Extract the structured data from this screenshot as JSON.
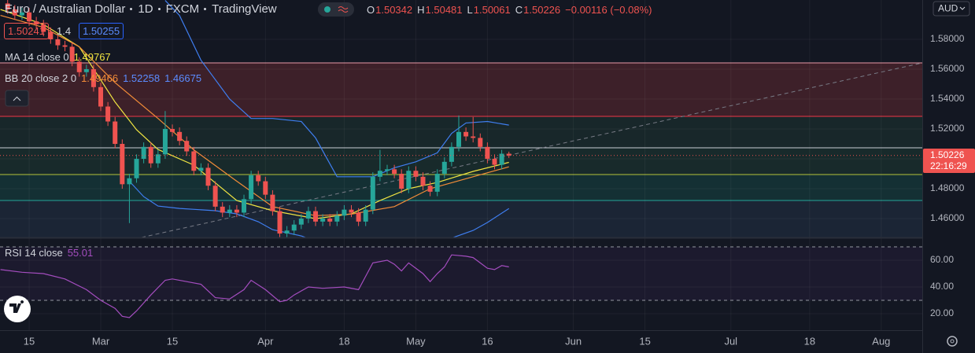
{
  "header": {
    "symbol": "Euro / Australian Dollar",
    "interval": "1D",
    "exchange": "FXCM",
    "source": "TradingView",
    "ohlc": [
      {
        "key": "O",
        "value": "1.50342"
      },
      {
        "key": "H",
        "value": "1.50481"
      },
      {
        "key": "L",
        "value": "1.50061"
      },
      {
        "key": "C",
        "value": "1.50226"
      }
    ],
    "change": "−0.00116 (−0.08%)",
    "bid": "1.50241",
    "spread": "1.4",
    "ask": "1.50255",
    "currency": "AUD",
    "price_tag": "1.50226",
    "countdown": "22:16:29"
  },
  "chart_data": [
    {
      "type": "candlestick",
      "up_color": "#26a69a",
      "down_color": "#ef5350",
      "x": [
        -3,
        -2,
        -1,
        0,
        1,
        2,
        3,
        4,
        5,
        6,
        7,
        8,
        9,
        10,
        11,
        12,
        13,
        14,
        15,
        16,
        17,
        18,
        19,
        20,
        21,
        22,
        23,
        24,
        25,
        26,
        27,
        28,
        29,
        30,
        31,
        32,
        33,
        34,
        35,
        36,
        37,
        38,
        39,
        40,
        41,
        42,
        43,
        44,
        45,
        46,
        47,
        48,
        49,
        50,
        51,
        52,
        53,
        54,
        55,
        56,
        57,
        58,
        59,
        60,
        61,
        62,
        63,
        64,
        65,
        66,
        67
      ],
      "open": [
        1.604,
        1.6,
        1.596,
        1.598,
        1.592,
        1.59,
        1.585,
        1.58,
        1.576,
        1.575,
        1.565,
        1.558,
        1.56,
        1.548,
        1.535,
        1.525,
        1.51,
        1.483,
        1.487,
        1.5,
        1.508,
        1.497,
        1.503,
        1.52,
        1.518,
        1.512,
        1.505,
        1.492,
        1.494,
        1.482,
        1.468,
        1.464,
        1.466,
        1.464,
        1.473,
        1.489,
        1.485,
        1.476,
        1.465,
        1.45,
        1.452,
        1.456,
        1.46,
        1.465,
        1.458,
        1.46,
        1.458,
        1.462,
        1.466,
        1.464,
        1.458,
        1.466,
        1.488,
        1.492,
        1.493,
        1.49,
        1.48,
        1.492,
        1.488,
        1.482,
        1.478,
        1.49,
        1.498,
        1.508,
        1.518,
        1.515,
        1.514,
        1.508,
        1.5,
        1.496,
        1.50342
      ],
      "high": [
        1.607,
        1.603,
        1.601,
        1.601,
        1.595,
        1.593,
        1.588,
        1.583,
        1.579,
        1.578,
        1.568,
        1.563,
        1.563,
        1.551,
        1.538,
        1.528,
        1.513,
        1.49,
        1.503,
        1.511,
        1.511,
        1.506,
        1.532,
        1.523,
        1.521,
        1.515,
        1.508,
        1.497,
        1.497,
        1.485,
        1.471,
        1.469,
        1.469,
        1.476,
        1.492,
        1.492,
        1.488,
        1.479,
        1.468,
        1.455,
        1.459,
        1.463,
        1.468,
        1.468,
        1.463,
        1.463,
        1.465,
        1.469,
        1.469,
        1.467,
        1.469,
        1.491,
        1.506,
        1.496,
        1.496,
        1.493,
        1.495,
        1.495,
        1.491,
        1.485,
        1.493,
        1.501,
        1.511,
        1.529,
        1.521,
        1.528,
        1.517,
        1.511,
        1.503,
        1.506,
        1.50481
      ],
      "low": [
        1.597,
        1.593,
        1.593,
        1.589,
        1.587,
        1.582,
        1.577,
        1.573,
        1.572,
        1.562,
        1.555,
        1.555,
        1.545,
        1.532,
        1.522,
        1.507,
        1.48,
        1.457,
        1.484,
        1.497,
        1.494,
        1.494,
        1.5,
        1.515,
        1.509,
        1.502,
        1.489,
        1.489,
        1.479,
        1.465,
        1.461,
        1.461,
        1.461,
        1.461,
        1.47,
        1.482,
        1.473,
        1.462,
        1.447,
        1.447,
        1.449,
        1.453,
        1.457,
        1.455,
        1.455,
        1.455,
        1.455,
        1.459,
        1.461,
        1.455,
        1.455,
        1.463,
        1.485,
        1.489,
        1.487,
        1.477,
        1.477,
        1.485,
        1.479,
        1.475,
        1.475,
        1.487,
        1.495,
        1.505,
        1.512,
        1.511,
        1.505,
        1.497,
        1.493,
        1.493,
        1.50061
      ],
      "close": [
        1.6,
        1.596,
        1.598,
        1.592,
        1.59,
        1.585,
        1.58,
        1.576,
        1.575,
        1.565,
        1.558,
        1.56,
        1.548,
        1.535,
        1.525,
        1.51,
        1.483,
        1.487,
        1.5,
        1.508,
        1.497,
        1.503,
        1.52,
        1.518,
        1.512,
        1.505,
        1.492,
        1.494,
        1.482,
        1.468,
        1.464,
        1.466,
        1.464,
        1.473,
        1.489,
        1.485,
        1.476,
        1.465,
        1.45,
        1.452,
        1.456,
        1.46,
        1.465,
        1.458,
        1.46,
        1.458,
        1.462,
        1.466,
        1.464,
        1.458,
        1.466,
        1.488,
        1.492,
        1.493,
        1.49,
        1.48,
        1.492,
        1.488,
        1.482,
        1.478,
        1.49,
        1.498,
        1.508,
        1.518,
        1.515,
        1.514,
        1.508,
        1.5,
        1.496,
        1.50342,
        1.50226
      ],
      "xlim": [
        -4.07,
        124.73
      ],
      "xticks": [
        {
          "value": 0,
          "label": "15"
        },
        {
          "value": 10,
          "label": "Mar"
        },
        {
          "value": 20,
          "label": "15"
        },
        {
          "value": 33,
          "label": "Apr"
        },
        {
          "value": 44,
          "label": "18"
        },
        {
          "value": 54,
          "label": "May"
        },
        {
          "value": 64,
          "label": "16"
        },
        {
          "value": 76,
          "label": "Jun"
        },
        {
          "value": 86,
          "label": "15"
        },
        {
          "value": 98,
          "label": "Jul"
        },
        {
          "value": 109,
          "label": "18"
        },
        {
          "value": 119,
          "label": "Aug"
        }
      ],
      "ylim": [
        1.4474,
        1.6063
      ],
      "yticks": [
        {
          "value": 1.46,
          "label": "1.46000"
        },
        {
          "value": 1.48,
          "label": "1.48000"
        },
        {
          "value": 1.5,
          "label": "1.50000"
        },
        {
          "value": 1.52,
          "label": "1.52000"
        },
        {
          "value": 1.54,
          "label": "1.54000"
        },
        {
          "value": 1.56,
          "label": "1.56000"
        },
        {
          "value": 1.58,
          "label": "1.58000"
        }
      ],
      "overlays": [
        {
          "name": "MA 14 close 0",
          "lines": [
            {
              "color": "#f0e442",
              "x": [
                -4,
                2,
                7,
                12,
                15,
                18,
                23,
                29,
                34,
                40,
                45,
                49,
                53,
                57,
                62,
                67
              ],
              "values": [
                1.6,
                1.59,
                1.575,
                1.538,
                1.5195,
                1.5063,
                1.4958,
                1.4721,
                1.4653,
                1.46,
                1.4632,
                1.4721,
                1.48,
                1.4842,
                1.4916,
                1.49767
              ]
            }
          ]
        },
        {
          "name": "BB 20 close 2 0",
          "lines": [
            {
              "color": "#f28c38",
              "x": [
                -4,
                2,
                7,
                12,
                18,
                23,
                29,
                34,
                40,
                45,
                51,
                56,
                62,
                67
              ],
              "values": [
                1.596,
                1.588,
                1.575,
                1.551,
                1.527,
                1.506,
                1.485,
                1.468,
                1.462,
                1.463,
                1.468,
                1.48,
                1.488,
                1.49466
              ]
            },
            {
              "color": "#3f7ef0",
              "x": [
                19,
                21,
                24,
                28,
                31,
                34,
                38,
                40,
                43,
                48,
                51,
                54,
                57,
                59,
                61,
                64,
                67
              ],
              "values": [
                1.606,
                1.596,
                1.566,
                1.54,
                1.527,
                1.527,
                1.525,
                1.514,
                1.488,
                1.488,
                1.494,
                1.498,
                1.504,
                1.517,
                1.524,
                1.525,
                1.52258
              ]
            },
            {
              "color": "#3f7ef0",
              "x": [
                14,
                16,
                18,
                21,
                26,
                29,
                32,
                34,
                38,
                40,
                45,
                50,
                55,
                59,
                62,
                64,
                67
              ],
              "values": [
                1.485,
                1.4747,
                1.4684,
                1.4668,
                1.4653,
                1.4632,
                1.4579,
                1.4526,
                1.4484,
                1.445,
                1.442,
                1.44,
                1.442,
                1.447,
                1.4521,
                1.4574,
                1.46675
              ]
            }
          ]
        }
      ]
    },
    {
      "type": "line",
      "name": "RSI 14 close",
      "color": "#a44dbf",
      "x": [
        -4,
        -1,
        2,
        5,
        8,
        10,
        12,
        13,
        14,
        15,
        17,
        19,
        20,
        22,
        24,
        26,
        28,
        30,
        31,
        33,
        35,
        36,
        37,
        39,
        41,
        44,
        46,
        47,
        48,
        50,
        51,
        52,
        53,
        55,
        56,
        57,
        58,
        59,
        61,
        62,
        63,
        64,
        65,
        66,
        67
      ],
      "values": [
        53,
        51,
        50,
        46,
        38,
        30,
        24,
        18,
        17,
        22,
        34,
        45,
        46,
        44,
        42,
        32,
        31,
        38,
        45,
        38,
        29,
        30,
        34,
        40,
        39,
        40,
        38,
        48,
        58,
        60,
        57,
        52,
        58,
        50,
        44,
        50,
        55,
        64,
        63,
        62,
        58,
        54,
        53,
        56,
        55.01
      ],
      "xlim": [
        -4.07,
        124.73
      ],
      "ylim": [
        7.6,
        76.5
      ],
      "yticks": [
        {
          "value": 20,
          "label": "20.00"
        },
        {
          "value": 40,
          "label": "40.00"
        },
        {
          "value": 60,
          "label": "60.00"
        }
      ]
    }
  ]
}
